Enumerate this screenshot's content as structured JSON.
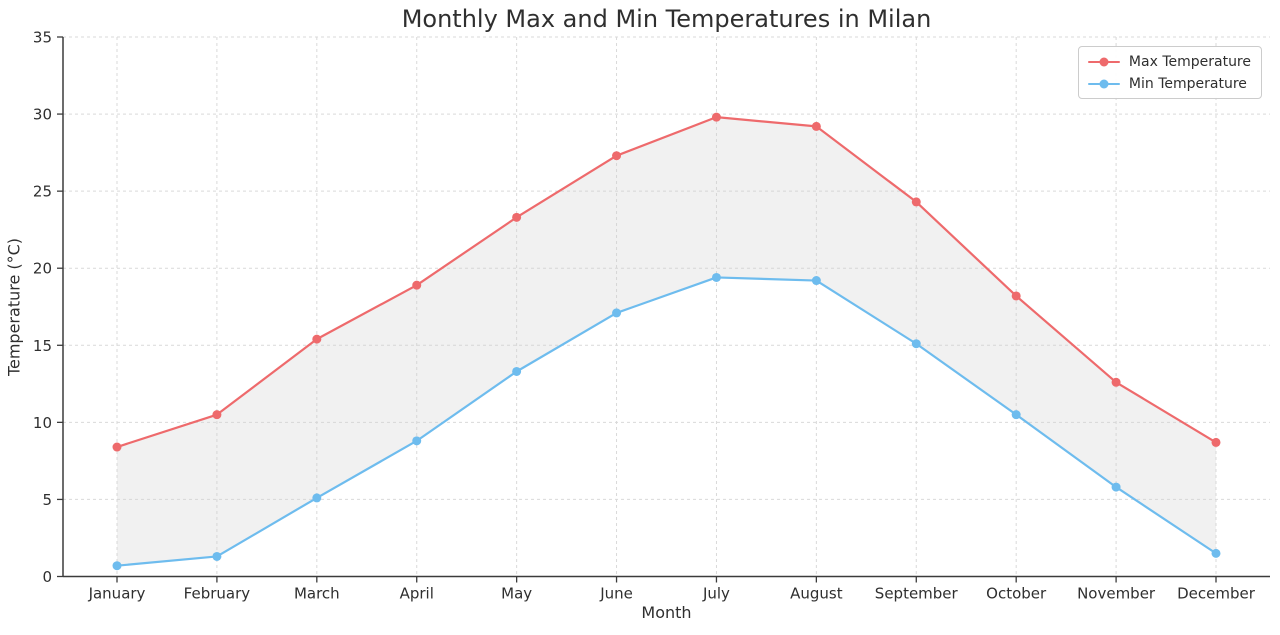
{
  "figure": {
    "title": "Monthly Max and Min Temperatures in Milan",
    "xlabel": "Month",
    "ylabel": "Temperature (°C)"
  },
  "legend": {
    "entries": [
      {
        "label": "Max Temperature",
        "color": "#ee6a6c"
      },
      {
        "label": "Min Temperature",
        "color": "#6ebcee"
      }
    ]
  },
  "chart_data": {
    "type": "line",
    "title": "Monthly Max and Min Temperatures in Milan",
    "xlabel": "Month",
    "ylabel": "Temperature (°C)",
    "categories": [
      "January",
      "February",
      "March",
      "April",
      "May",
      "June",
      "July",
      "August",
      "September",
      "October",
      "November",
      "December"
    ],
    "series": [
      {
        "name": "Max Temperature",
        "color": "#ee6a6c",
        "values": [
          8.4,
          10.5,
          15.4,
          18.9,
          23.3,
          27.3,
          29.8,
          29.2,
          24.3,
          18.2,
          12.6,
          8.7
        ]
      },
      {
        "name": "Min Temperature",
        "color": "#6ebcee",
        "values": [
          0.7,
          1.3,
          5.1,
          8.8,
          13.3,
          17.1,
          19.4,
          19.2,
          15.1,
          10.5,
          5.8,
          1.5
        ]
      }
    ],
    "ylim": [
      0,
      35
    ],
    "yticks": [
      0,
      5,
      10,
      15,
      20,
      25,
      30,
      35
    ],
    "grid": true,
    "grid_style": "dashed",
    "grid_color": "#d9d9d9",
    "fill_between": true,
    "fill_color": "#cfcfcf",
    "fill_opacity": 0.3,
    "marker": "o",
    "legend_position": "upper right",
    "spine_color": "#3b3b3b",
    "tick_label_color": "#2f2f2f"
  }
}
